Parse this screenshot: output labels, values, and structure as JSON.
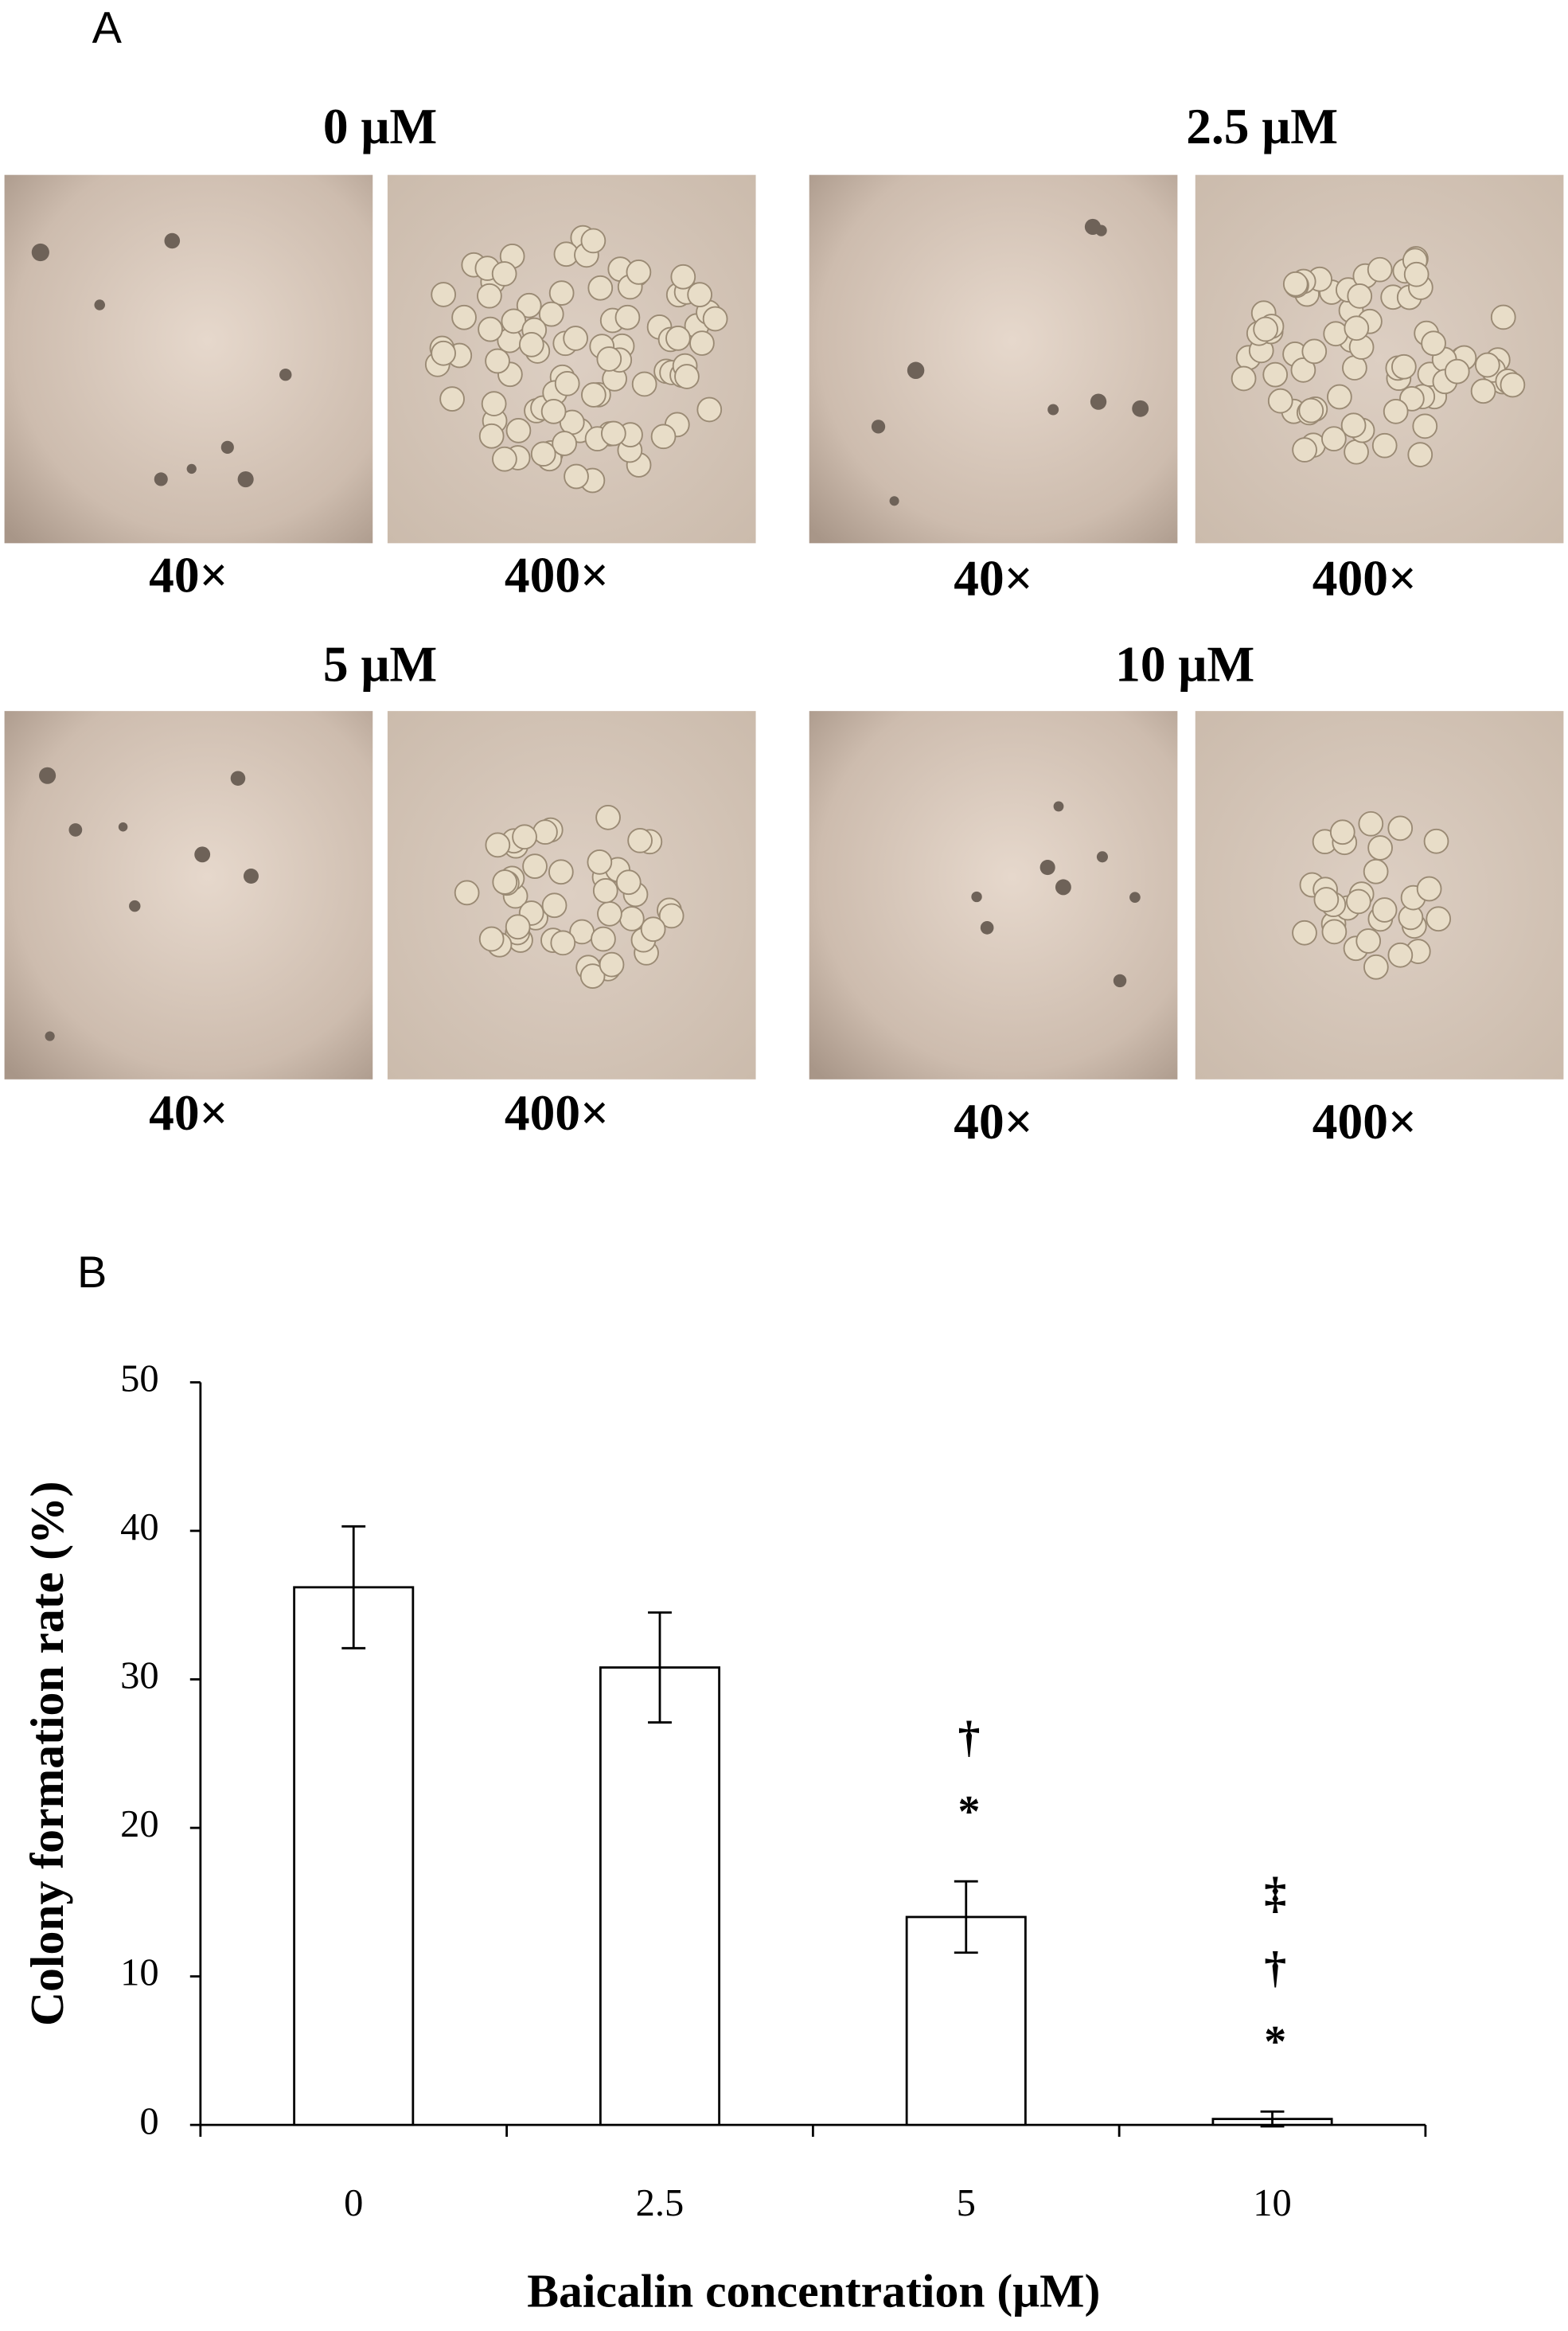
{
  "panel_a": {
    "label": "A",
    "groups": [
      {
        "title": "0 μM",
        "images": [
          "40×",
          "400×"
        ]
      },
      {
        "title": "2.5 μM",
        "images": [
          "40×",
          "400×"
        ]
      },
      {
        "title": "5 μM",
        "images": [
          "40×",
          "400×"
        ]
      },
      {
        "title": "10 μM",
        "images": [
          "40×",
          "400×"
        ]
      }
    ]
  },
  "panel_b": {
    "label": "B"
  },
  "chart_data": {
    "type": "bar",
    "x_label": "Baicalin concentration (μM)",
    "y_label": "Colony formation rate (%)",
    "categories": [
      "0",
      "2.5",
      "5",
      "10"
    ],
    "values": [
      36.2,
      30.8,
      14,
      0.4
    ],
    "errors": [
      4.1,
      3.7,
      2.4,
      0.5
    ],
    "annotations": [
      null,
      null,
      [
        "†",
        "*"
      ],
      [
        "‡",
        "†",
        "*"
      ]
    ],
    "color": "#ffffff",
    "ylim": [
      0,
      50
    ],
    "yticks": [
      0,
      10,
      20,
      30,
      40,
      50
    ]
  }
}
